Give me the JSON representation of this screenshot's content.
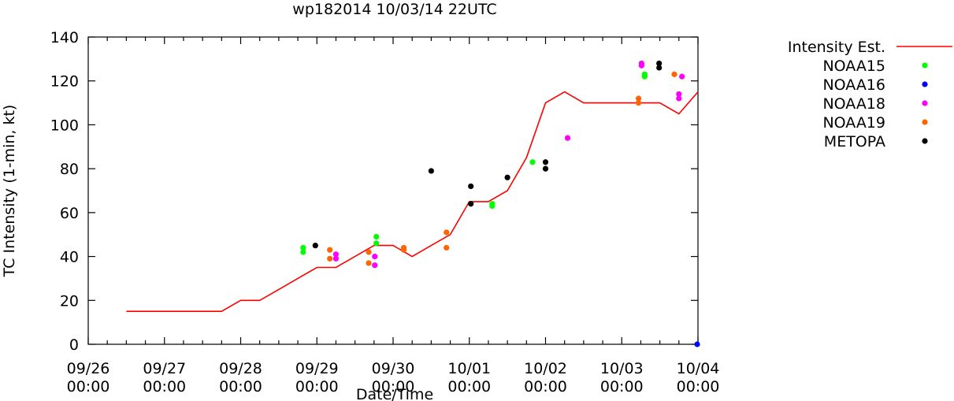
{
  "chart_data": {
    "type": "scatter",
    "title": "wp182014 10/03/14 22UTC",
    "xlabel": "Date/Time",
    "ylabel": "TC Intensity (1-min, kt)",
    "ylim": [
      0,
      140
    ],
    "yticks": [
      "0",
      "20",
      "40",
      "60",
      "80",
      "100",
      "120",
      "140"
    ],
    "xlim_days": [
      0,
      8
    ],
    "xticks": [
      {
        "date": "09/26",
        "time": "00:00"
      },
      {
        "date": "09/27",
        "time": "00:00"
      },
      {
        "date": "09/28",
        "time": "00:00"
      },
      {
        "date": "09/29",
        "time": "00:00"
      },
      {
        "date": "09/30",
        "time": "00:00"
      },
      {
        "date": "10/01",
        "time": "00:00"
      },
      {
        "date": "10/02",
        "time": "00:00"
      },
      {
        "date": "10/03",
        "time": "00:00"
      },
      {
        "date": "10/04",
        "time": "00:00"
      }
    ],
    "grid": false,
    "legend_position": "right",
    "line_series": {
      "name": "Intensity Est.",
      "color": "#ff0000",
      "points": [
        [
          0.5,
          15
        ],
        [
          0.75,
          15
        ],
        [
          1.0,
          15
        ],
        [
          1.25,
          15
        ],
        [
          1.5,
          15
        ],
        [
          1.75,
          15
        ],
        [
          2.0,
          20
        ],
        [
          2.25,
          20
        ],
        [
          2.5,
          25
        ],
        [
          2.75,
          30
        ],
        [
          3.0,
          35
        ],
        [
          3.25,
          35
        ],
        [
          3.5,
          40
        ],
        [
          3.75,
          45
        ],
        [
          4.0,
          45
        ],
        [
          4.25,
          40
        ],
        [
          4.5,
          45
        ],
        [
          4.75,
          50
        ],
        [
          5.0,
          65
        ],
        [
          5.25,
          65
        ],
        [
          5.5,
          70
        ],
        [
          5.75,
          85
        ],
        [
          6.0,
          110
        ],
        [
          6.25,
          115
        ],
        [
          6.5,
          110
        ],
        [
          6.75,
          110
        ],
        [
          7.0,
          110
        ],
        [
          7.25,
          110
        ],
        [
          7.5,
          110
        ],
        [
          7.75,
          105
        ],
        [
          8.0,
          115
        ]
      ]
    },
    "scatter_series": [
      {
        "name": "NOAA15",
        "color": "#00ff00",
        "points": [
          [
            2.82,
            44
          ],
          [
            2.82,
            42
          ],
          [
            3.78,
            49
          ],
          [
            3.78,
            46
          ],
          [
            5.3,
            64
          ],
          [
            5.3,
            63
          ],
          [
            5.83,
            83
          ],
          [
            7.3,
            123
          ],
          [
            7.3,
            122
          ]
        ]
      },
      {
        "name": "NOAA16",
        "color": "#0000ff",
        "points": [
          [
            7.99,
            0
          ]
        ]
      },
      {
        "name": "NOAA18",
        "color": "#ff00ff",
        "points": [
          [
            3.25,
            41
          ],
          [
            3.25,
            39
          ],
          [
            3.76,
            40
          ],
          [
            3.76,
            36
          ],
          [
            6.29,
            94
          ],
          [
            7.75,
            114
          ],
          [
            7.75,
            112
          ],
          [
            7.26,
            128
          ],
          [
            7.26,
            127
          ],
          [
            7.79,
            122
          ]
        ]
      },
      {
        "name": "NOAA19",
        "color": "#ff6600",
        "points": [
          [
            3.17,
            43
          ],
          [
            3.17,
            39
          ],
          [
            3.68,
            42
          ],
          [
            3.68,
            37
          ],
          [
            4.14,
            44
          ],
          [
            4.14,
            43
          ],
          [
            4.7,
            51
          ],
          [
            4.7,
            44
          ],
          [
            7.22,
            112
          ],
          [
            7.22,
            110
          ],
          [
            7.69,
            123
          ]
        ]
      },
      {
        "name": "METOPA",
        "color": "#000000",
        "points": [
          [
            2.98,
            45
          ],
          [
            4.5,
            79
          ],
          [
            5.02,
            72
          ],
          [
            5.02,
            64
          ],
          [
            5.5,
            76
          ],
          [
            6.0,
            83
          ],
          [
            6.0,
            80
          ],
          [
            7.49,
            128
          ],
          [
            7.49,
            126
          ]
        ]
      }
    ]
  }
}
